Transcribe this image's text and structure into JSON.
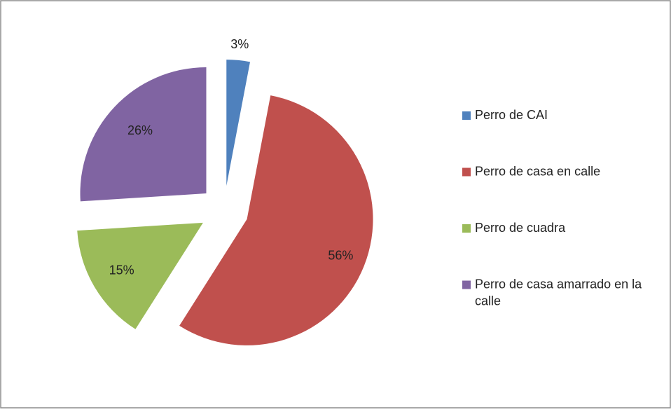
{
  "chart_data": {
    "type": "pie",
    "categories": [
      "Perro de CAI",
      "Perro de casa en calle",
      "Perro de cuadra",
      "Perro de casa amarrado en la calle"
    ],
    "values": [
      3,
      56,
      15,
      26
    ],
    "value_labels": [
      "3%",
      "56%",
      "15%",
      "26%"
    ],
    "colors": [
      "#4f81bd",
      "#c0504d",
      "#9bbb59",
      "#8064a2"
    ],
    "exploded": true,
    "legend": "right"
  }
}
